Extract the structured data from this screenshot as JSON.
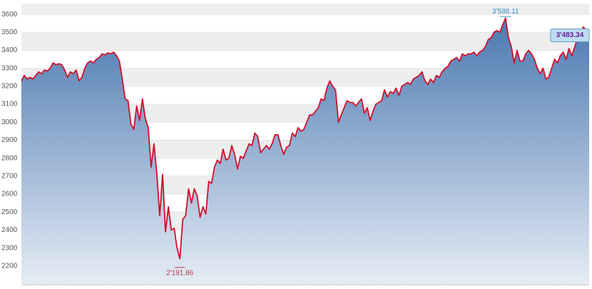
{
  "chart_data": {
    "type": "area",
    "values": [
      3230,
      3260,
      3240,
      3250,
      3240,
      3260,
      3280,
      3270,
      3290,
      3285,
      3300,
      3330,
      3320,
      3325,
      3320,
      3290,
      3250,
      3280,
      3270,
      3290,
      3230,
      3250,
      3300,
      3330,
      3340,
      3330,
      3350,
      3360,
      3380,
      3375,
      3385,
      3380,
      3390,
      3370,
      3340,
      3240,
      3130,
      3120,
      2990,
      2960,
      3090,
      3010,
      3130,
      3020,
      2970,
      2750,
      2880,
      2710,
      2480,
      2710,
      2390,
      2530,
      2400,
      2410,
      2300,
      2240,
      2460,
      2480,
      2630,
      2550,
      2630,
      2590,
      2470,
      2530,
      2490,
      2670,
      2660,
      2750,
      2790,
      2770,
      2850,
      2790,
      2800,
      2870,
      2820,
      2740,
      2810,
      2800,
      2840,
      2880,
      2870,
      2940,
      2920,
      2830,
      2850,
      2870,
      2850,
      2880,
      2930,
      2930,
      2870,
      2820,
      2860,
      2870,
      2940,
      2920,
      2970,
      2950,
      2960,
      3000,
      3040,
      3040,
      3060,
      3080,
      3130,
      3120,
      3190,
      3230,
      3200,
      3180,
      3000,
      3040,
      3080,
      3120,
      3110,
      3110,
      3090,
      3110,
      3130,
      3050,
      3080,
      3010,
      3060,
      3100,
      3110,
      3120,
      3180,
      3140,
      3170,
      3160,
      3190,
      3150,
      3200,
      3210,
      3220,
      3210,
      3240,
      3250,
      3260,
      3280,
      3230,
      3210,
      3240,
      3220,
      3260,
      3250,
      3280,
      3300,
      3310,
      3340,
      3350,
      3360,
      3340,
      3380,
      3370,
      3380,
      3380,
      3390,
      3370,
      3390,
      3400,
      3420,
      3460,
      3470,
      3500,
      3510,
      3500,
      3540,
      3580,
      3470,
      3420,
      3330,
      3400,
      3340,
      3340,
      3380,
      3400,
      3380,
      3350,
      3300,
      3270,
      3300,
      3240,
      3250,
      3300,
      3350,
      3330,
      3370,
      3390,
      3350,
      3410,
      3370,
      3420,
      3470,
      3490,
      3530,
      3510,
      3483.34
    ],
    "color": "#d0112b",
    "ylim": [
      2100,
      3660
    ],
    "yticks": [
      2200,
      2300,
      2400,
      2500,
      2600,
      2700,
      2800,
      2900,
      3000,
      3100,
      3200,
      3300,
      3400,
      3500,
      3600
    ],
    "grid": true,
    "annotations": [
      {
        "kind": "high",
        "value": 3588.11,
        "label": "3'588.11"
      },
      {
        "kind": "low",
        "value": 2191.86,
        "label": "2'191.86"
      },
      {
        "kind": "last",
        "value": 3483.34,
        "label": "3'483.34"
      }
    ]
  }
}
